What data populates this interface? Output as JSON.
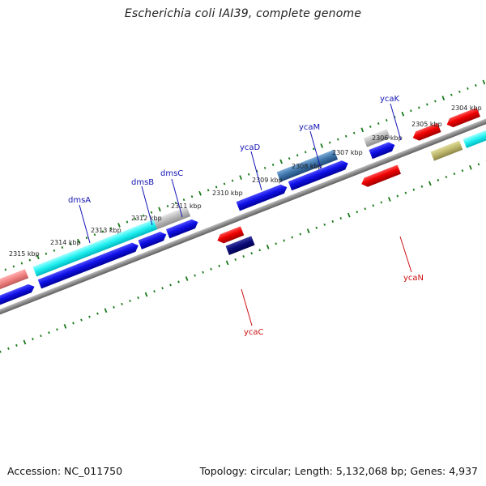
{
  "title": "Escherichia coli IAI39, complete genome",
  "footer": {
    "accession": "Accession: NC_011750",
    "summary": "Topology: circular; Length: 5,132,068 bp; Genes: 4,937"
  },
  "colors": {
    "tick": "#1a7a1a",
    "backbone": "#888888",
    "label_top": "#1414b4",
    "label_bottom": "#cc1010"
  },
  "scale_labels": [
    "2315 kbp",
    "2314 kbp",
    "2313 kbp",
    "2312 kbp",
    "2311 kbp",
    "2310 kbp",
    "2309 kbp",
    "2308 kbp",
    "2307 kbp",
    "2306 kbp",
    "2305 kbp",
    "2304 kbp"
  ],
  "gene_labels": {
    "top": [
      "dmsA",
      "dmsB",
      "dmsC",
      "ycaD",
      "ycaM",
      "ycaK"
    ],
    "bottom": [
      "ycaC",
      "ycaN"
    ]
  }
}
